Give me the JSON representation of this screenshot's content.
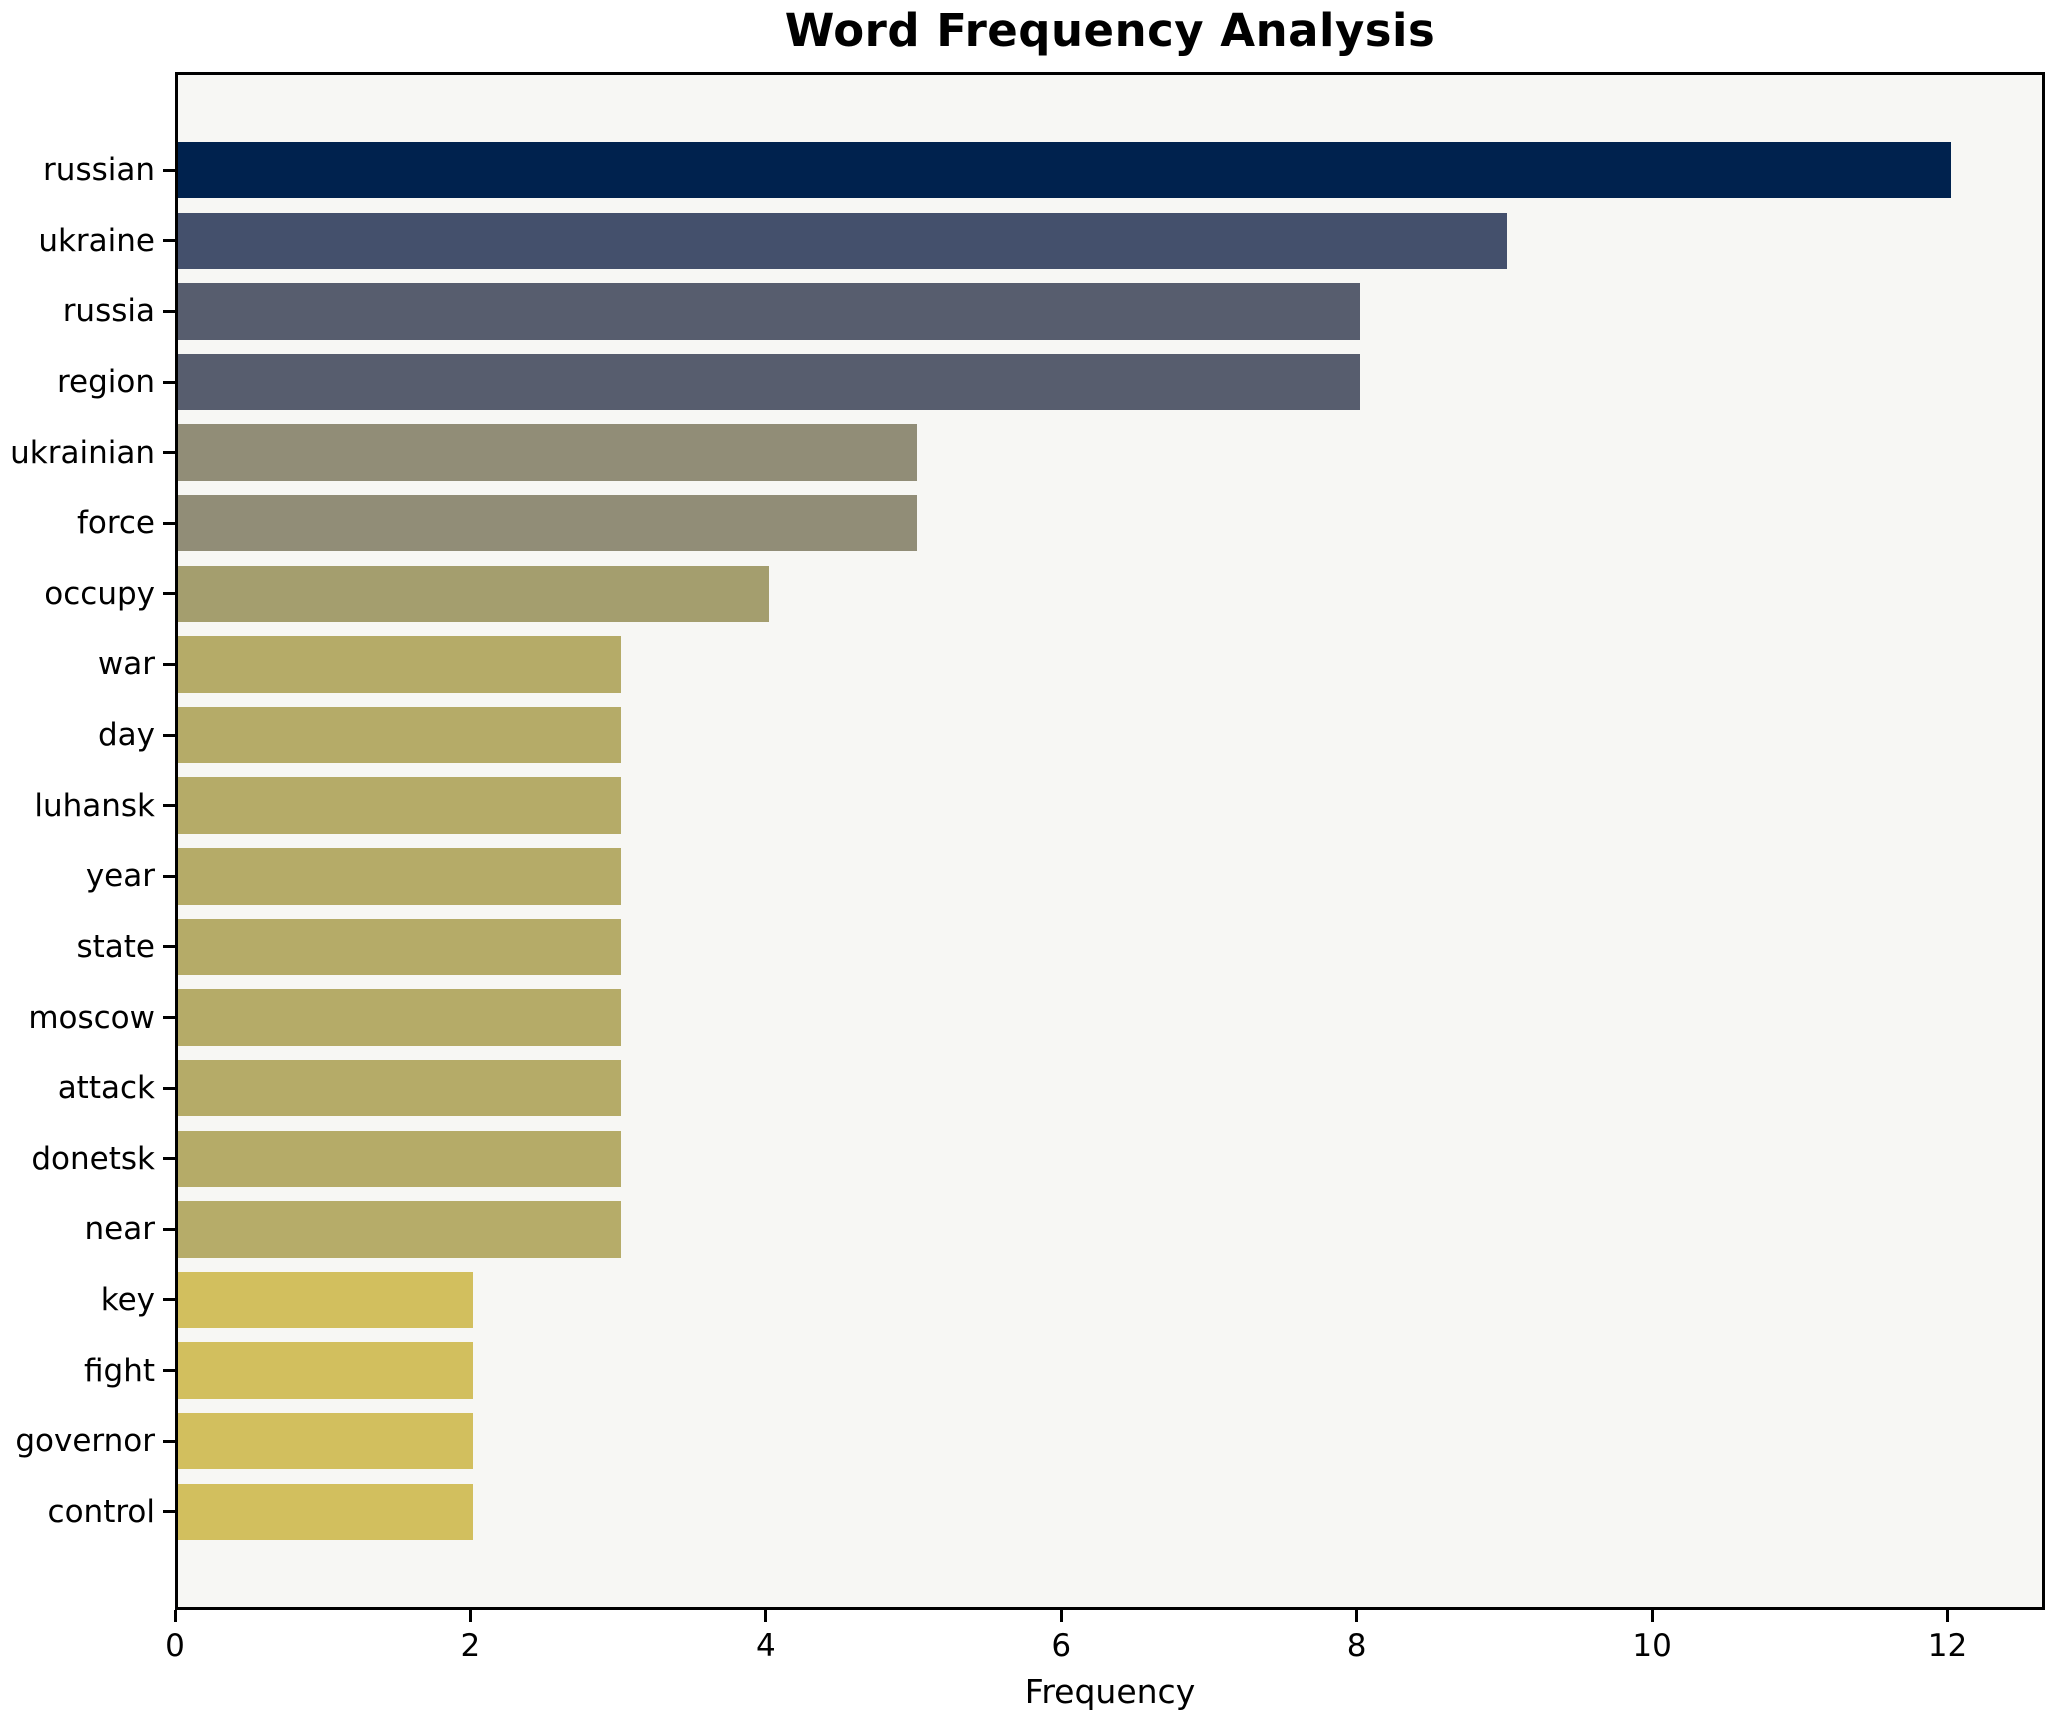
{
  "chart_data": {
    "type": "bar",
    "orientation": "horizontal",
    "title": "Word Frequency Analysis",
    "xlabel": "Frequency",
    "ylabel": "",
    "categories": [
      "russian",
      "ukraine",
      "russia",
      "region",
      "ukrainian",
      "force",
      "occupy",
      "war",
      "day",
      "luhansk",
      "year",
      "state",
      "moscow",
      "attack",
      "donetsk",
      "near",
      "key",
      "fight",
      "governor",
      "control"
    ],
    "values": [
      12,
      9,
      8,
      8,
      5,
      5,
      4,
      3,
      3,
      3,
      3,
      3,
      3,
      3,
      3,
      3,
      2,
      2,
      2,
      2
    ],
    "bar_colors": [
      "#00224e",
      "#44506c",
      "#575d6e",
      "#575d6e",
      "#918d77",
      "#918d77",
      "#a49e6e",
      "#b5ab68",
      "#b5ab68",
      "#b5ab68",
      "#b5ab68",
      "#b5ab68",
      "#b5ab68",
      "#b5ab68",
      "#b5ab68",
      "#b6ac69",
      "#d2bf5e",
      "#d2bf5e",
      "#d2bf5e",
      "#d2bf5e"
    ],
    "x_ticks": [
      0,
      2,
      4,
      6,
      8,
      10,
      12
    ],
    "xlim": [
      0,
      12.66
    ],
    "grid": false,
    "legend": false,
    "plot_background": "#f7f7f4",
    "figure_background": "#ffffff",
    "spine_color": "#000000",
    "text_color": "#000000"
  }
}
